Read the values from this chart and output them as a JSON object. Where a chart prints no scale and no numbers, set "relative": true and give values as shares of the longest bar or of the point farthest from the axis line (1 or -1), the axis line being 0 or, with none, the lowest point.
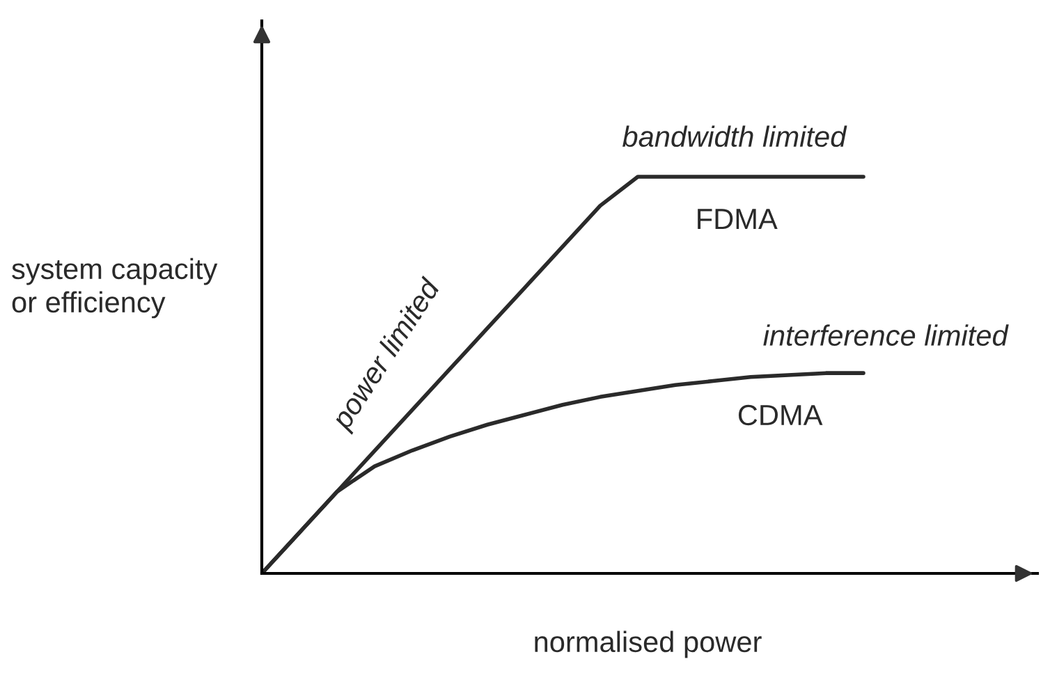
{
  "chart_data": {
    "type": "line",
    "relative": true,
    "xlabel": "normalised power",
    "ylabel": "system capacity\nor efficiency",
    "categories": [
      null,
      null,
      null,
      null,
      null,
      null,
      null,
      null,
      null,
      null,
      null,
      null,
      null,
      null,
      null,
      null,
      null
    ],
    "series": [
      {
        "name": "FDMA",
        "color": "#2a2a2a",
        "values": [
          0,
          0.103,
          0.206,
          0.309,
          0.412,
          0.515,
          0.618,
          0.721,
          0.824,
          0.927,
          1,
          1,
          1,
          1,
          1,
          1,
          1
        ]
      },
      {
        "name": "CDMA",
        "color": "#2a2a2a",
        "values": [
          0,
          0.103,
          0.206,
          0.27,
          0.31,
          0.345,
          0.375,
          0.4,
          0.425,
          0.445,
          0.46,
          0.475,
          0.485,
          0.495,
          0.5,
          0.505,
          0.505
        ]
      }
    ],
    "annotations": [
      "bandwidth limited",
      "interference limited",
      "power limited"
    ],
    "legend": false,
    "marker": "none",
    "line_style": "solid"
  }
}
